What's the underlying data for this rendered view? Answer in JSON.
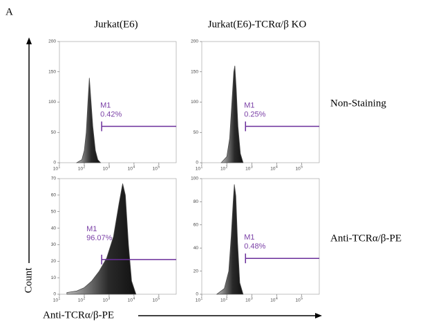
{
  "panel_label": "A",
  "column_titles": [
    "Jurkat(E6)",
    "Jurkat(E6)-TCRα/β KO"
  ],
  "row_titles": [
    "Non-Staining",
    "Anti-TCRα/β-PE"
  ],
  "y_label": "Count",
  "x_label": "Anti-TCRα/β-PE",
  "chart_data": [
    {
      "type": "area",
      "color": "#4a4a4a",
      "log_x": true,
      "x": [
        50,
        80,
        100,
        120,
        140,
        160,
        180,
        220,
        280,
        350,
        450
      ],
      "values": [
        0,
        5,
        20,
        50,
        100,
        140,
        110,
        60,
        20,
        5,
        0
      ],
      "xlim": [
        10,
        500000
      ],
      "xticks": [
        {
          "value": 10,
          "label": "10",
          "sup": "1"
        },
        {
          "value": 100,
          "label": "10",
          "sup": "2"
        },
        {
          "value": 1000,
          "label": "10",
          "sup": "3"
        },
        {
          "value": 10000,
          "label": "10",
          "sup": "4"
        },
        {
          "value": 100000,
          "label": "10",
          "sup": "5"
        }
      ],
      "ylim": [
        0,
        200
      ],
      "yticks": [
        0,
        50,
        100,
        150,
        200
      ],
      "gate": {
        "label": "M1",
        "percent": "0.42%",
        "x": [
          500,
          500000
        ],
        "y": 60
      }
    },
    {
      "type": "area",
      "color": "#4a4a4a",
      "log_x": true,
      "x": [
        60,
        100,
        130,
        160,
        190,
        210,
        240,
        280,
        350,
        450
      ],
      "values": [
        0,
        10,
        40,
        100,
        150,
        160,
        120,
        60,
        15,
        0
      ],
      "xlim": [
        10,
        500000
      ],
      "xticks": [
        {
          "value": 10,
          "label": "10",
          "sup": "1"
        },
        {
          "value": 100,
          "label": "10",
          "sup": "2"
        },
        {
          "value": 1000,
          "label": "10",
          "sup": "3"
        },
        {
          "value": 10000,
          "label": "10",
          "sup": "4"
        },
        {
          "value": 100000,
          "label": "10",
          "sup": "5"
        }
      ],
      "ylim": [
        0,
        200
      ],
      "yticks": [
        0,
        50,
        100,
        150,
        200
      ],
      "gate": {
        "label": "M1",
        "percent": "0.25%",
        "x": [
          560,
          500000
        ],
        "y": 60
      }
    },
    {
      "type": "area",
      "color": "#4a4a4a",
      "log_x": true,
      "x": [
        20,
        50,
        100,
        200,
        400,
        800,
        1500,
        2500,
        3500,
        4500,
        6000,
        8000,
        12000
      ],
      "values": [
        1,
        2,
        4,
        8,
        14,
        22,
        35,
        55,
        67,
        60,
        30,
        8,
        0
      ],
      "xlim": [
        10,
        500000
      ],
      "xticks": [
        {
          "value": 10,
          "label": "10",
          "sup": "1"
        },
        {
          "value": 100,
          "label": "10",
          "sup": "2"
        },
        {
          "value": 1000,
          "label": "10",
          "sup": "3"
        },
        {
          "value": 10000,
          "label": "10",
          "sup": "4"
        },
        {
          "value": 100000,
          "label": "10",
          "sup": "5"
        }
      ],
      "ylim": [
        0,
        70
      ],
      "yticks": [
        0,
        10,
        20,
        30,
        40,
        50,
        60,
        70
      ],
      "gate": {
        "label": "M1",
        "percent": "96.07%",
        "x": [
          500,
          500000
        ],
        "y": 21
      }
    },
    {
      "type": "area",
      "color": "#4a4a4a",
      "log_x": true,
      "x": [
        40,
        80,
        120,
        150,
        180,
        200,
        230,
        270,
        330,
        450
      ],
      "values": [
        0,
        5,
        20,
        50,
        80,
        95,
        85,
        45,
        10,
        0
      ],
      "xlim": [
        10,
        500000
      ],
      "xticks": [
        {
          "value": 10,
          "label": "10",
          "sup": "1"
        },
        {
          "value": 100,
          "label": "10",
          "sup": "2"
        },
        {
          "value": 1000,
          "label": "10",
          "sup": "3"
        },
        {
          "value": 10000,
          "label": "10",
          "sup": "4"
        },
        {
          "value": 100000,
          "label": "10",
          "sup": "5"
        }
      ],
      "ylim": [
        0,
        100
      ],
      "yticks": [
        0,
        20,
        40,
        60,
        80,
        100
      ],
      "gate": {
        "label": "M1",
        "percent": "0.48%",
        "x": [
          560,
          500000
        ],
        "y": 31
      }
    }
  ]
}
